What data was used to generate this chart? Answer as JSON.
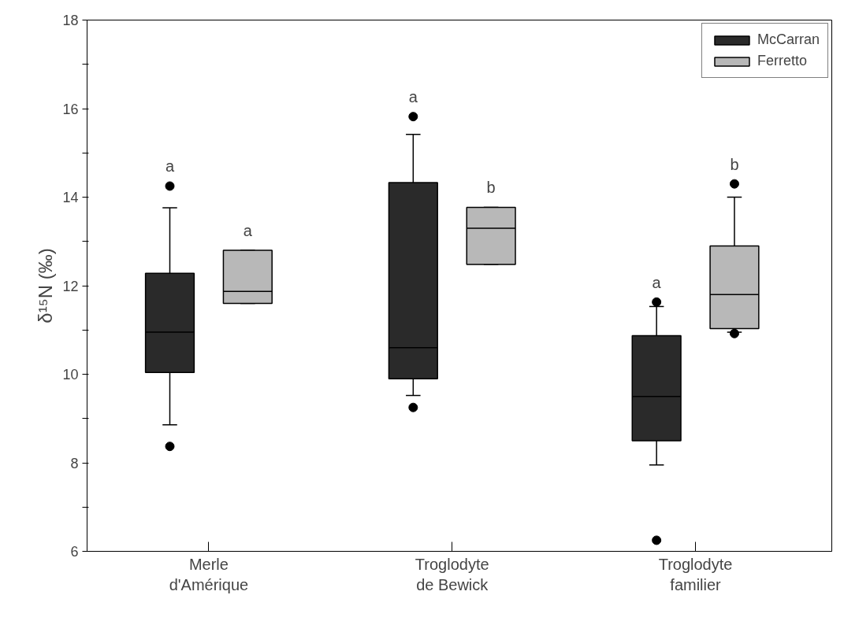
{
  "chart_data": {
    "type": "box",
    "ylabel": "δ¹⁵N (‰)",
    "categories": [
      "Merle\nd'Amérique",
      "Troglodyte\nde Bewick",
      "Troglodyte\nfamilier"
    ],
    "series": [
      {
        "name": "McCarran",
        "color": "#2a2a2a",
        "boxes": [
          {
            "low": 8.86,
            "q1": 10.04,
            "median": 10.95,
            "q3": 12.28,
            "high": 13.76,
            "outliers": [
              8.37,
              14.25
            ]
          },
          {
            "low": 9.52,
            "q1": 9.9,
            "median": 10.6,
            "q3": 14.33,
            "high": 15.42,
            "outliers": [
              9.25,
              15.82
            ]
          },
          {
            "low": 7.95,
            "q1": 8.5,
            "median": 9.5,
            "q3": 10.87,
            "high": 11.53,
            "outliers": [
              6.25,
              11.63
            ]
          }
        ]
      },
      {
        "name": "Ferretto",
        "color": "#b8b8b8",
        "boxes": [
          {
            "low": 11.6,
            "q1": 11.6,
            "median": 11.87,
            "q3": 12.8,
            "high": 12.8
          },
          {
            "low": 12.48,
            "q1": 12.48,
            "median": 13.3,
            "q3": 13.77,
            "high": 13.77
          },
          {
            "low": 10.95,
            "q1": 11.03,
            "median": 11.8,
            "q3": 12.9,
            "high": 14.0,
            "outliers": [
              10.92,
              14.3
            ]
          }
        ]
      }
    ],
    "annotations": [
      "a",
      "a",
      "a",
      "b",
      "a",
      "b"
    ],
    "ylim": [
      6,
      18
    ],
    "yticks": [
      6,
      {
        "value": 7,
        "label": null
      },
      8,
      {
        "value": 9,
        "label": null
      },
      10,
      {
        "value": 11,
        "label": null
      },
      12,
      {
        "value": 13,
        "label": null
      },
      14,
      {
        "value": 15,
        "label": null
      },
      16,
      {
        "value": 17,
        "label": null
      },
      18
    ],
    "grid": false,
    "legend": "top right"
  }
}
